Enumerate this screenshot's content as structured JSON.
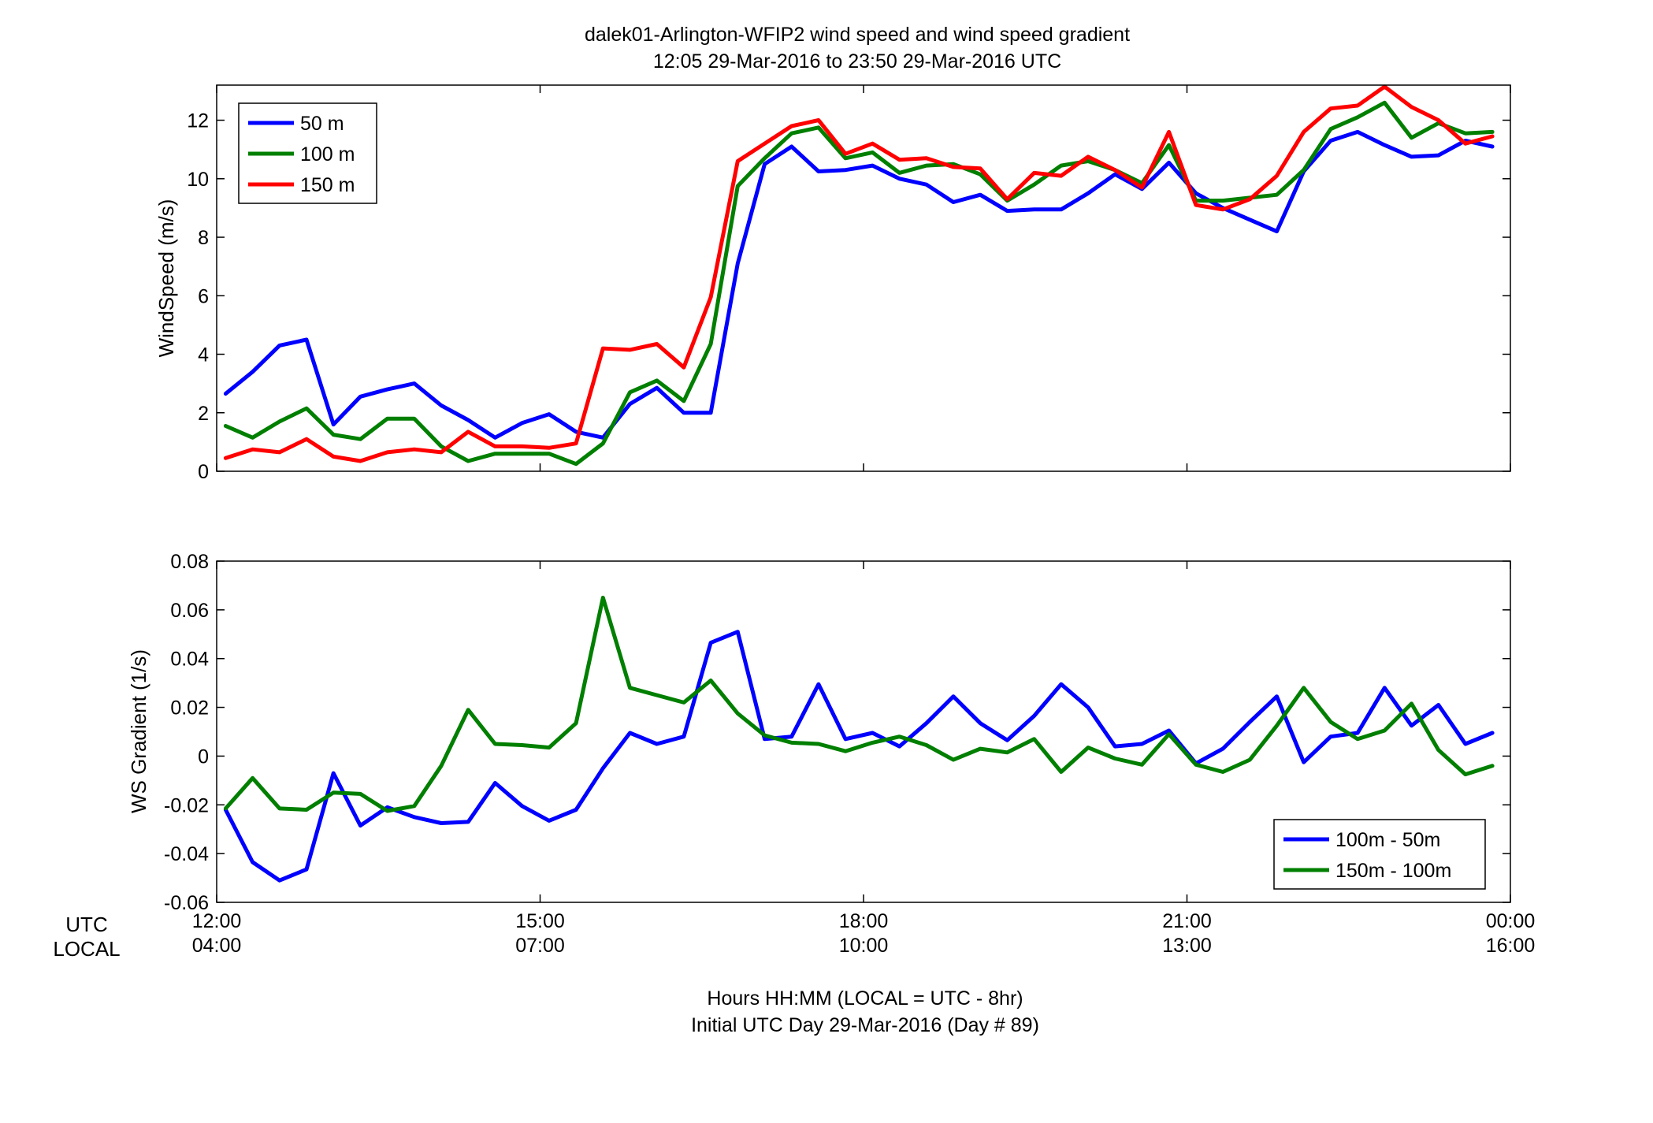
{
  "figure": {
    "title_line1": "dalek01-Arlington-WFIP2  wind speed and wind speed gradient",
    "title_line2": "12:05 29-Mar-2016 to 23:50 29-Mar-2016  UTC",
    "xlabel_line1": "Hours HH:MM  (LOCAL = UTC - 8hr)",
    "xlabel_line2": "Initial UTC Day 29-Mar-2016 (Day # 89)",
    "row_label_utc": "UTC",
    "row_label_local": "LOCAL"
  },
  "chart_data": [
    {
      "type": "line",
      "title": "",
      "ylabel": "WindSpeed (m/s)",
      "xlabel": "",
      "x_units": "hours UTC",
      "xlim": [
        12,
        24
      ],
      "ylim": [
        0,
        13.2
      ],
      "yticks": [
        0,
        2,
        4,
        6,
        8,
        10,
        12
      ],
      "ytick_labels": [
        "0",
        "2",
        "4",
        "6",
        "8",
        "10",
        "12"
      ],
      "grid": false,
      "legend_position": "top-left",
      "x": [
        12.083,
        12.333,
        12.583,
        12.833,
        13.083,
        13.333,
        13.583,
        13.833,
        14.083,
        14.333,
        14.583,
        14.833,
        15.083,
        15.333,
        15.583,
        15.833,
        16.083,
        16.333,
        16.583,
        16.833,
        17.083,
        17.333,
        17.583,
        17.833,
        18.083,
        18.333,
        18.583,
        18.833,
        19.083,
        19.333,
        19.583,
        19.833,
        20.083,
        20.333,
        20.583,
        20.833,
        21.083,
        21.333,
        21.583,
        21.833,
        22.083,
        22.333,
        22.583,
        22.833,
        23.083,
        23.333,
        23.583,
        23.833
      ],
      "series": [
        {
          "name": "50 m",
          "color": "#0000ff",
          "values": [
            2.65,
            3.4,
            4.3,
            4.5,
            1.6,
            2.55,
            2.8,
            3.0,
            2.25,
            1.75,
            1.15,
            1.65,
            1.95,
            1.35,
            1.15,
            2.3,
            2.85,
            2.0,
            2.0,
            7.1,
            10.5,
            11.1,
            10.25,
            10.3,
            10.45,
            10.0,
            9.8,
            9.2,
            9.45,
            8.9,
            8.95,
            8.95,
            9.5,
            10.15,
            9.65,
            10.55,
            9.5,
            9.0,
            8.6,
            8.2,
            10.25,
            11.3,
            11.6,
            11.15,
            10.75,
            10.8,
            11.3,
            11.1
          ]
        },
        {
          "name": "100 m",
          "color": "#007f00",
          "values": [
            1.55,
            1.15,
            1.7,
            2.15,
            1.25,
            1.1,
            1.8,
            1.8,
            0.85,
            0.35,
            0.6,
            0.6,
            0.6,
            0.25,
            0.95,
            2.7,
            3.1,
            2.4,
            4.35,
            9.75,
            10.7,
            11.55,
            11.75,
            10.7,
            10.9,
            10.2,
            10.45,
            10.5,
            10.15,
            9.25,
            9.8,
            10.45,
            10.6,
            10.3,
            9.85,
            11.15,
            9.25,
            9.25,
            9.35,
            9.45,
            10.3,
            11.7,
            12.1,
            12.6,
            11.4,
            11.9,
            11.55,
            11.6
          ]
        },
        {
          "name": "150 m",
          "color": "#ff0000",
          "values": [
            0.45,
            0.75,
            0.65,
            1.1,
            0.5,
            0.35,
            0.65,
            0.75,
            0.65,
            1.35,
            0.85,
            0.85,
            0.8,
            0.95,
            4.2,
            4.15,
            4.35,
            3.55,
            5.95,
            10.6,
            11.2,
            11.8,
            12.0,
            10.85,
            11.2,
            10.65,
            10.7,
            10.4,
            10.35,
            9.3,
            10.2,
            10.1,
            10.75,
            10.3,
            9.7,
            11.6,
            9.1,
            8.95,
            9.3,
            10.1,
            11.6,
            12.4,
            12.5,
            13.15,
            12.45,
            12.0,
            11.2,
            11.45
          ]
        }
      ]
    },
    {
      "type": "line",
      "title": "",
      "ylabel": "WS Gradient (1/s)",
      "xlabel": "",
      "x_units": "hours UTC",
      "xlim": [
        12,
        24
      ],
      "ylim": [
        -0.06,
        0.08
      ],
      "yticks": [
        -0.06,
        -0.04,
        -0.02,
        0,
        0.02,
        0.04,
        0.06,
        0.08
      ],
      "ytick_labels": [
        "-0.06",
        "-0.04",
        "-0.02",
        "0",
        "0.02",
        "0.04",
        "0.06",
        "0.08"
      ],
      "grid": false,
      "legend_position": "bottom-right",
      "x": [
        12.083,
        12.333,
        12.583,
        12.833,
        13.083,
        13.333,
        13.583,
        13.833,
        14.083,
        14.333,
        14.583,
        14.833,
        15.083,
        15.333,
        15.583,
        15.833,
        16.083,
        16.333,
        16.583,
        16.833,
        17.083,
        17.333,
        17.583,
        17.833,
        18.083,
        18.333,
        18.583,
        18.833,
        19.083,
        19.333,
        19.583,
        19.833,
        20.083,
        20.333,
        20.583,
        20.833,
        21.083,
        21.333,
        21.583,
        21.833,
        22.083,
        22.333,
        22.583,
        22.833,
        23.083,
        23.333,
        23.583,
        23.833
      ],
      "series": [
        {
          "name": "100m - 50m",
          "color": "#0000ff",
          "values": [
            -0.022,
            -0.0435,
            -0.051,
            -0.0465,
            -0.007,
            -0.0285,
            -0.021,
            -0.025,
            -0.0275,
            -0.027,
            -0.011,
            -0.0205,
            -0.0265,
            -0.022,
            -0.005,
            0.0095,
            0.005,
            0.008,
            0.0465,
            0.051,
            0.007,
            0.008,
            0.0295,
            0.007,
            0.0095,
            0.004,
            0.0135,
            0.0245,
            0.0135,
            0.0065,
            0.0165,
            0.0295,
            0.02,
            0.004,
            0.005,
            0.0105,
            -0.003,
            0.003,
            0.014,
            0.0245,
            -0.0025,
            0.008,
            0.0095,
            0.028,
            0.0125,
            0.021,
            0.005,
            0.0095
          ]
        },
        {
          "name": "150m - 100m",
          "color": "#007f00",
          "values": [
            -0.0215,
            -0.009,
            -0.0215,
            -0.022,
            -0.015,
            -0.0155,
            -0.0225,
            -0.0205,
            -0.004,
            0.019,
            0.005,
            0.0045,
            0.0035,
            0.0135,
            0.065,
            0.028,
            0.025,
            0.022,
            0.031,
            0.0175,
            0.0085,
            0.0055,
            0.005,
            0.002,
            0.0055,
            0.008,
            0.0045,
            -0.0015,
            0.003,
            0.0015,
            0.007,
            -0.0065,
            0.0035,
            -0.001,
            -0.0035,
            0.009,
            -0.0035,
            -0.0065,
            -0.0015,
            0.0125,
            0.028,
            0.014,
            0.007,
            0.0105,
            0.0215,
            0.0025,
            -0.0075,
            -0.004
          ]
        }
      ]
    }
  ],
  "x_ticks": {
    "values": [
      12,
      15,
      18,
      21,
      24
    ],
    "utc_labels": [
      "12:00",
      "15:00",
      "18:00",
      "21:00",
      "00:00"
    ],
    "local_labels": [
      "04:00",
      "07:00",
      "10:00",
      "13:00",
      "16:00"
    ]
  }
}
